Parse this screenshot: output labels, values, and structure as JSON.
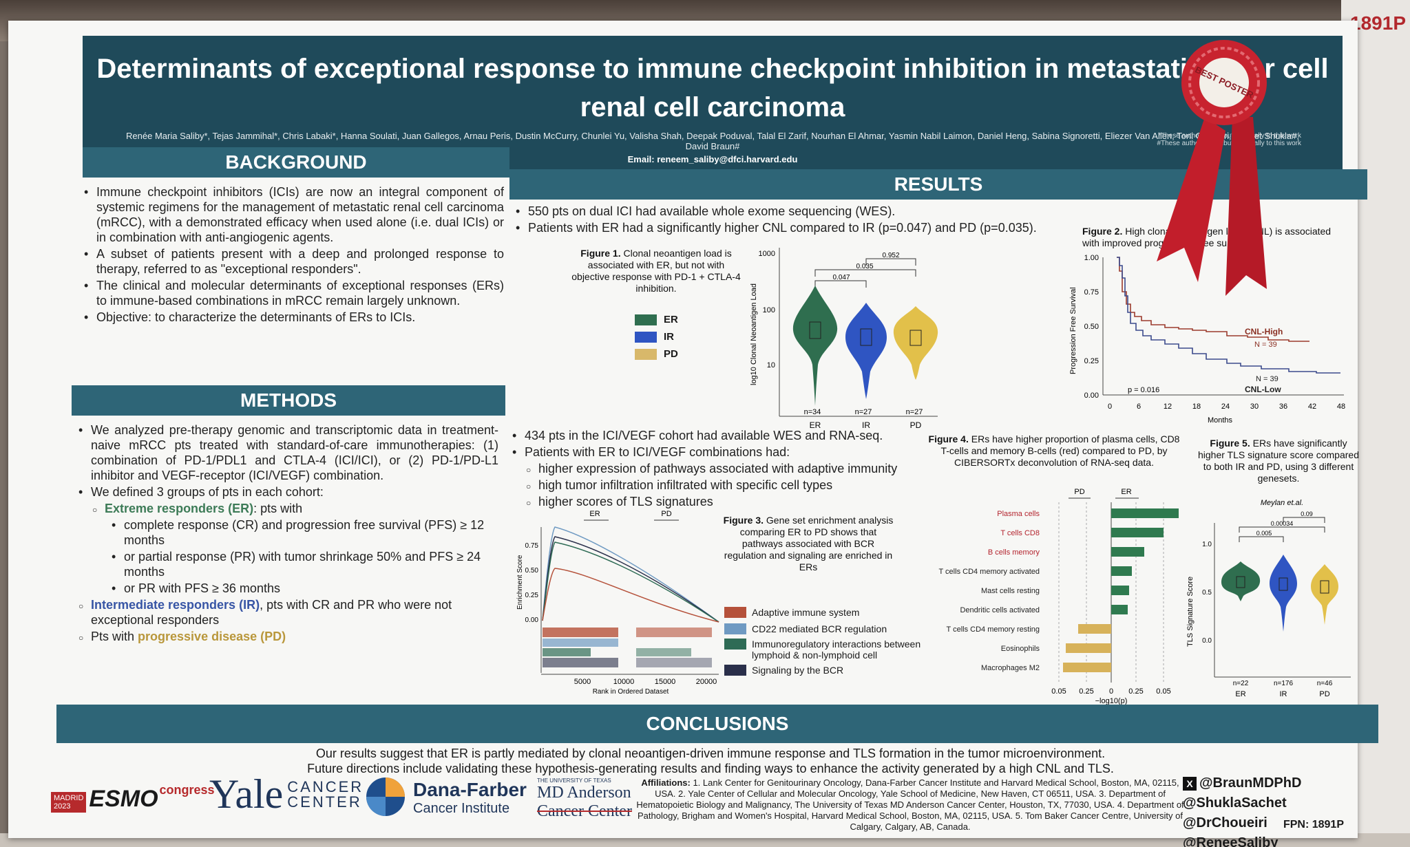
{
  "board_number": "1891P",
  "title": "Determinants of exceptional response to immune checkpoint inhibition in metastatic clear cell renal cell carcinoma",
  "authors": "Renée Maria Saliby*, Tejas Jammihal*, Chris Labaki*, Hanna Soulati, Juan Gallegos, Arnau Peris, Dustin McCurry, Chunlei Yu, Valisha Shah, Deepak Poduval, Talal El Zarif, Nourhan El Ahmar, Yasmin Nabil Laimon, Daniel Heng, Sabina Signoretti, Eliezer Van Allen, Toni Choueiri, Sachet Shukla#, David Braun#",
  "email": "Email: reneem_saliby@dfci.harvard.edu",
  "footnote1": "*These authors contributed equally to this work",
  "footnote2": "#These authors contributed equally to this work",
  "ribbon_text": "BEST POSTER",
  "background": {
    "heading": "BACKGROUND",
    "bullets": [
      "Immune checkpoint inhibitors (ICIs) are now an integral component of systemic regimens for the management of metastatic renal cell carcinoma (mRCC), with a demonstrated efficacy when used alone (i.e. dual ICIs) or in combination with anti-angiogenic agents.",
      "A subset of patients present with a deep and prolonged response to therapy, referred to as \"exceptional responders\".",
      "The clinical and molecular determinants of exceptional responses (ERs) to immune-based combinations in mRCC remain largely unknown.",
      "Objective: to characterize the determinants of ERs to ICIs."
    ]
  },
  "methods": {
    "heading": "METHODS",
    "p1": "We analyzed pre-therapy genomic and transcriptomic data in treatment-naive mRCC pts treated with standard-of-care immunotherapies: (1) combination of PD-1/PDL1 and CTLA-4 (ICI/ICI), or (2) PD-1/PD-L1 inhibitor and VEGF-receptor (ICI/VEGF) combination.",
    "p2": "We defined 3 groups of pts in each cohort:",
    "er_label": "Extreme responders (ER)",
    "er_suffix": ": pts with",
    "er_sub1": "complete response (CR) and progression free survival (PFS) ≥ 12 months",
    "er_sub2": "or partial response (PR) with tumor shrinkage 50% and PFS ≥ 24 months",
    "er_sub3": "or PR with PFS ≥ 36 months",
    "ir_label": "Intermediate responders (IR)",
    "ir_suffix": ", pts with CR and PR who were not exceptional responders",
    "pd_prefix": "Pts with ",
    "pd_label": "progressive disease (PD)"
  },
  "results": {
    "heading": "RESULTS",
    "b1": "550 pts on dual ICI had available whole exome sequencing (WES).",
    "b2": "Patients with ER had a significantly higher CNL compared to IR (p=0.047) and PD (p=0.035).",
    "b3": "434 pts in the ICI/VEGF cohort had available WES and RNA-seq.",
    "b4": "Patients with ER to ICI/VEGF combinations had:",
    "s1": "higher expression of pathways associated with adaptive immunity",
    "s2": "high tumor infiltration infiltrated with specific cell types",
    "s3": "higher scores of TLS signatures"
  },
  "fig1": {
    "caption_bold": "Figure 1.",
    "caption": " Clonal neoantigen load is associated with ER, but not with objective response with PD-1 + CTLA-4 inhibition.",
    "ylabel": "log10 Clonal Neoantigen Load",
    "yticks": [
      "1000",
      "100",
      "10"
    ],
    "groups": [
      "ER",
      "IR",
      "PD"
    ],
    "n": [
      "n=34",
      "n=27",
      "n=27"
    ],
    "pvals": [
      "0.047",
      "0.035",
      "0.952"
    ],
    "colors": [
      "#2f6e4f",
      "#2f55c2",
      "#e2c04a"
    ],
    "legend": [
      "ER",
      "IR",
      "PD"
    ]
  },
  "fig2": {
    "caption_bold": "Figure 2.",
    "caption": " High clonal neoantigen load (CNL) is associated with improved progression free survival.",
    "ylabel": "Progression Free Survival",
    "xlabel": "Months",
    "xticks": [
      "0",
      "6",
      "12",
      "18",
      "24",
      "30",
      "36",
      "42",
      "48"
    ],
    "yticks": [
      "1.00",
      "0.75",
      "0.50",
      "0.25",
      "0.00"
    ],
    "high_label": "CNL-High",
    "high_n": "N = 39",
    "low_label": "CNL-Low",
    "low_n": "N = 39",
    "pval": "p = 0.016"
  },
  "fig3": {
    "caption_bold": "Figure 3.",
    "caption": " Gene set enrichment analysis comparing ER to PD shows that pathways associated with BCR regulation and signaling are enriched in ERs",
    "ylabel": "Enrichment Score",
    "xlabel": "Rank in Ordered Dataset",
    "xticks": [
      "5000",
      "10000",
      "15000",
      "20000"
    ],
    "yticks": [
      "0.75",
      "0.50",
      "0.25",
      "0.00"
    ],
    "top_left": "ER",
    "top_right": "PD",
    "legend": [
      {
        "label": "Adaptive immune system",
        "color": "#b5513a"
      },
      {
        "label": "CD22 mediated BCR regulation",
        "color": "#6f9ac2"
      },
      {
        "label": "Immunoregulatory interactions between lymphoid & non-lymphoid cell",
        "color": "#2e6b55"
      },
      {
        "label": "Signaling by the BCR",
        "color": "#2a2f4a"
      }
    ]
  },
  "fig4": {
    "caption_bold": "Figure 4.",
    "caption": " ERs have higher proportion of plasma cells, CD8 T-cells and memory B-cells (red) compared to PD, by CIBERSORTx deconvolution of RNA-seq data.",
    "xlabel": "−log10(p)",
    "head_pd": "PD",
    "head_er": "ER",
    "xticks": [
      "0.05",
      "0.25",
      "0",
      "0.25",
      "0.05"
    ],
    "cells": [
      {
        "label": "Plasma cells",
        "red": true
      },
      {
        "label": "T cells CD8",
        "red": true
      },
      {
        "label": "B cells memory",
        "red": true
      },
      {
        "label": "T cells CD4 memory activated",
        "red": false
      },
      {
        "label": "Mast cells resting",
        "red": false
      },
      {
        "label": "Dendritic cells activated",
        "red": false
      },
      {
        "label": "T cells CD4 memory resting",
        "red": false
      },
      {
        "label": "Eosinophils",
        "red": false
      },
      {
        "label": "Macrophages M2",
        "red": false
      }
    ]
  },
  "fig5": {
    "caption_bold": "Figure 5.",
    "caption": " ERs have significantly higher TLS signature score compared to both IR and PD, using 3 different genesets.",
    "subtitle": "Meylan et.al.",
    "ylabel": "TLS Signature Score",
    "yticks": [
      "1.0",
      "0.5",
      "0.0"
    ],
    "groups": [
      "ER",
      "IR",
      "PD"
    ],
    "n": [
      "n=22",
      "n=176",
      "n=46"
    ],
    "pvals": [
      "0.005",
      "0.00034",
      "0.09"
    ]
  },
  "conclusions": {
    "heading": "CONCLUSIONS",
    "line1": "Our results suggest that ER is partly mediated by clonal neoantigen-driven immune response and TLS formation in the tumor microenvironment.",
    "line2": "Future directions include validating these hypothesis-generating results and finding ways to enhance the activity generated by a high CNL and TLS."
  },
  "affiliations_label": "Affiliations:",
  "affiliations": " 1. Lank Center for Genitourinary Oncology, Dana-Farber Cancer Institute and Harvard Medical School, Boston, MA, 02115, USA. 2. Yale Center of Cellular and Molecular Oncology, Yale School of Medicine, New Haven, CT 06511, USA. 3. Department of Hematopoietic Biology and Malignancy, The University of Texas MD Anderson Cancer Center, Houston, TX, 77030, USA. 4. Department of Pathology, Brigham and Women's Hospital, Harvard Medical School, Boston, MA, 02115, USA. 5. Tom Baker Cancer Centre, University of Calgary, Calgary, AB, Canada.",
  "handles": [
    "@BraunMDPhD",
    "@ShuklaSachet",
    "@DrChoueiri",
    "@ReneeSaliby"
  ],
  "fpn": "FPN: 1891P",
  "logos": {
    "esmo_city": "MADRID",
    "esmo_year": "2023",
    "esmo": "ESMO",
    "esmo_congress": "congress",
    "yale": "Yale",
    "yale_cancer": "CANCER",
    "yale_center": "CENTER",
    "df1": "Dana-Farber",
    "df2": "Cancer Institute",
    "mda_top": "THE UNIVERSITY OF TEXAS",
    "mda1": "MD Anderson",
    "mda2": "Cancer Center"
  }
}
